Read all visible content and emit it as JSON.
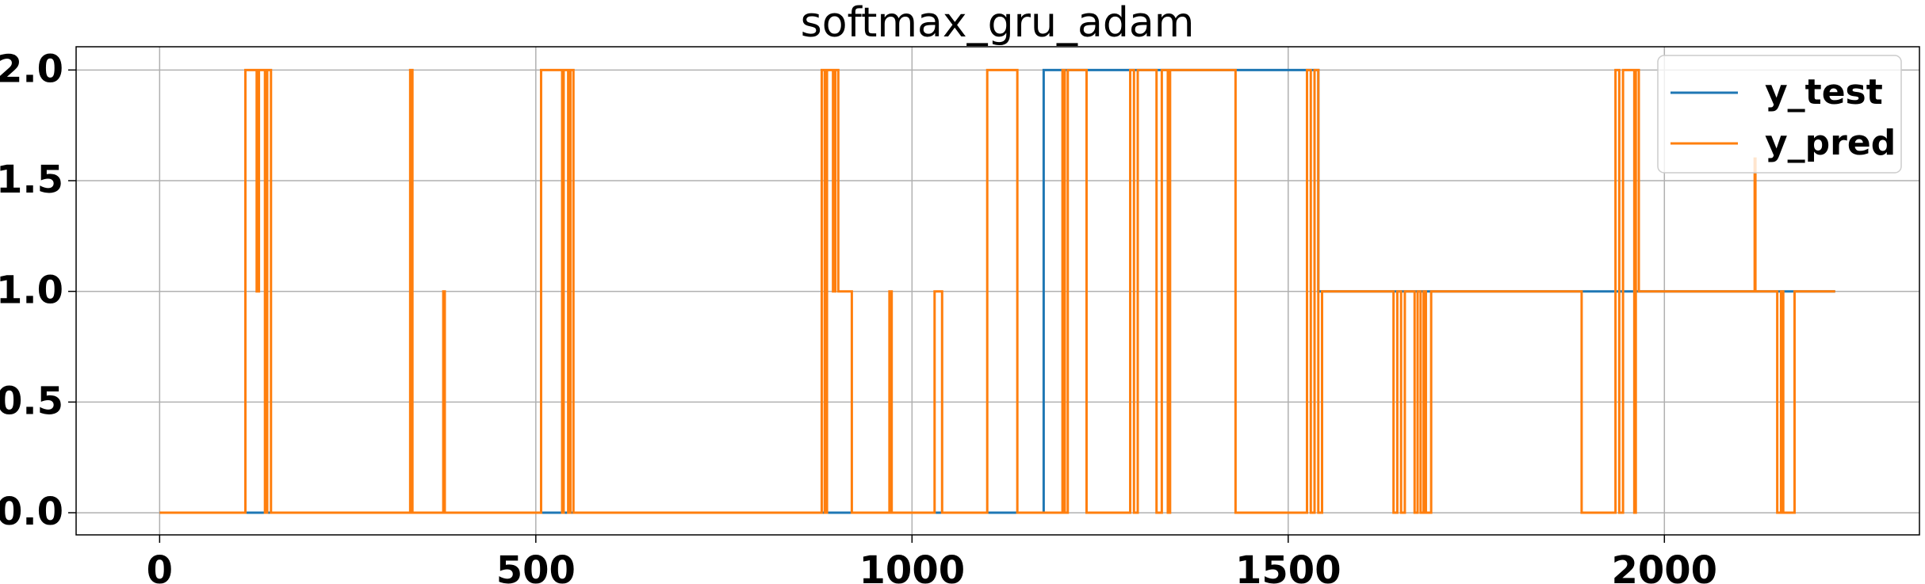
{
  "chart_data": {
    "type": "line",
    "title": "softmax_gru_adam",
    "xlim": [
      -111,
      2339
    ],
    "ylim": [
      -0.1,
      2.105
    ],
    "xticks": [
      0,
      500,
      1000,
      1500,
      2000
    ],
    "yticks": [
      {
        "value": 0,
        "label": "0.0"
      },
      {
        "value": 0.5,
        "label": "0.5"
      },
      {
        "value": 1,
        "label": "1.0"
      },
      {
        "value": 1.5,
        "label": "1.5"
      },
      {
        "value": 2,
        "label": "2.0"
      }
    ],
    "grid": true,
    "legend": "upper right",
    "series": [
      {
        "name": "y_test",
        "color": "#1f77b4",
        "x": [
          0,
          1175,
          1175,
          1540,
          1540,
          2227
        ],
        "values": [
          0,
          0,
          2,
          2,
          1,
          1
        ]
      },
      {
        "name": "y_pred",
        "color": "#ff7f0e",
        "x": [
          0,
          114,
          114,
          129,
          129,
          132,
          132,
          140,
          140,
          143,
          143,
          148,
          148,
          333,
          333,
          336,
          336,
          377,
          377,
          379,
          379,
          507,
          507,
          535,
          535,
          537,
          537,
          543,
          543,
          546,
          546,
          550,
          550,
          880,
          880,
          884,
          884,
          887,
          887,
          895,
          895,
          898,
          898,
          902,
          902,
          920,
          920,
          970,
          970,
          973,
          973,
          1030,
          1030,
          1040,
          1040,
          1100,
          1100,
          1140,
          1140,
          1200,
          1200,
          1203,
          1203,
          1207,
          1207,
          1232,
          1232,
          1290,
          1290,
          1295,
          1295,
          1300,
          1300,
          1325,
          1325,
          1332,
          1332,
          1340,
          1340,
          1343,
          1343,
          1430,
          1430,
          1525,
          1525,
          1530,
          1530,
          1535,
          1535,
          1540,
          1540,
          1545,
          1545,
          1640,
          1640,
          1645,
          1645,
          1650,
          1650,
          1655,
          1655,
          1668,
          1668,
          1672,
          1672,
          1676,
          1676,
          1680,
          1680,
          1683,
          1683,
          1690,
          1690,
          1890,
          1890,
          1935,
          1935,
          1940,
          1940,
          1945,
          1945,
          1960,
          1960,
          1962,
          1962,
          1966,
          1966,
          2120,
          2120,
          2121,
          2121,
          2150,
          2150,
          2155,
          2155,
          2158,
          2158,
          2173,
          2173,
          2227
        ],
        "values": [
          0,
          0,
          2,
          2,
          1,
          1,
          2,
          2,
          0,
          0,
          2,
          2,
          0,
          0,
          2,
          2,
          0,
          0,
          1,
          1,
          0,
          0,
          2,
          2,
          0,
          0,
          2,
          2,
          0,
          0,
          2,
          2,
          0,
          0,
          2,
          2,
          0,
          0,
          2,
          2,
          1,
          1,
          2,
          2,
          1,
          1,
          0,
          0,
          1,
          1,
          0,
          0,
          1,
          1,
          0,
          0,
          2,
          2,
          0,
          0,
          2,
          2,
          0,
          0,
          2,
          2,
          0,
          0,
          2,
          2,
          0,
          0,
          2,
          2,
          0,
          0,
          2,
          2,
          0,
          0,
          2,
          2,
          0,
          0,
          2,
          2,
          0,
          0,
          2,
          2,
          0,
          0,
          1,
          1,
          0,
          0,
          1,
          1,
          0,
          0,
          1,
          1,
          0,
          0,
          1,
          1,
          0,
          0,
          1,
          1,
          0,
          0,
          1,
          1,
          0,
          0,
          2,
          2,
          0,
          0,
          2,
          2,
          0,
          0,
          2,
          2,
          1,
          1,
          1.6,
          1.6,
          1,
          1,
          0,
          0,
          1,
          1,
          0,
          0,
          1,
          1
        ]
      }
    ]
  }
}
